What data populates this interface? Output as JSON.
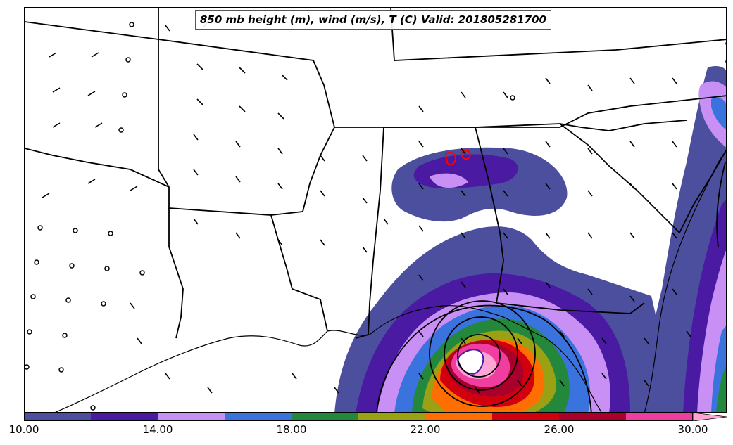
{
  "title": "850 mb height (m), wind (m/s), T (C) Valid: 201805281700",
  "colorbar": {
    "colors": [
      "#4b4f9e",
      "#4b1aa3",
      "#c890f5",
      "#3a73dd",
      "#23883c",
      "#9aa114",
      "#ff6e00",
      "#d1000e",
      "#a8002a",
      "#f03ea0",
      "#ffa6d6"
    ],
    "tick_labels": [
      "10.00",
      "14.00",
      "18.00",
      "22.00",
      "26.00",
      "30.00"
    ]
  }
}
